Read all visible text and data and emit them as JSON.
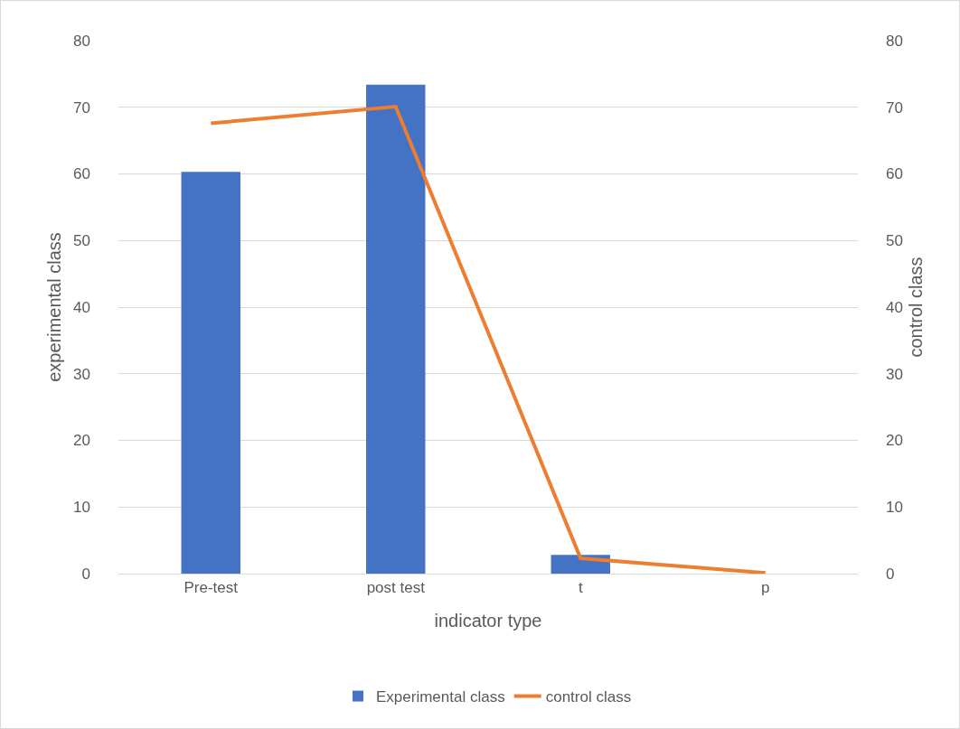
{
  "chart_data": {
    "type": "bar",
    "xlabel": "indicator type",
    "ylabel": "experimental class",
    "y2label": "control class",
    "categories": [
      "Pre-test",
      "post test",
      "t",
      "p"
    ],
    "series": [
      {
        "name": "Experimental class",
        "color": "#4472c4",
        "values": [
          60.3,
          73.4,
          2.8,
          0
        ]
      },
      {
        "name": "control class",
        "type": "line",
        "axis": "y2",
        "color": "#ed7d31",
        "values": [
          67.6,
          70.1,
          2.3,
          0.1
        ]
      }
    ],
    "ylim": [
      0,
      80
    ],
    "yticks": [
      0,
      10,
      20,
      30,
      40,
      50,
      60,
      70,
      80
    ],
    "y2lim": [
      0,
      80
    ],
    "y2ticks": [
      0,
      10,
      20,
      30,
      40,
      50,
      60,
      70,
      80
    ],
    "grid": "y",
    "legend": "bottom",
    "marker": "none",
    "line_style": "solid"
  }
}
